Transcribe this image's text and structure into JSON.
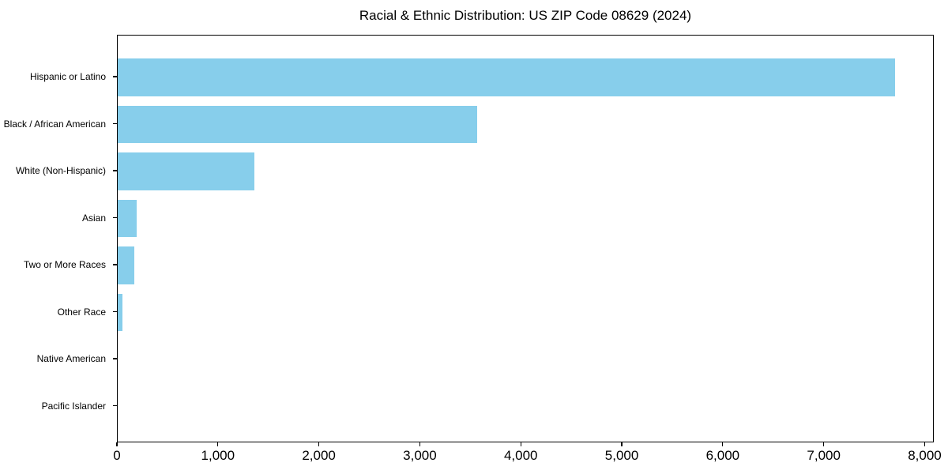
{
  "chart_data": {
    "type": "bar",
    "orientation": "horizontal",
    "title": "Racial & Ethnic Distribution: US ZIP Code 08629 (2024)",
    "categories": [
      "Hispanic or Latino",
      "Black / African American",
      "White (Non-Hispanic)",
      "Asian",
      "Two or More Races",
      "Other Race",
      "Native American",
      "Pacific Islander"
    ],
    "values": [
      7700,
      3560,
      1350,
      185,
      167,
      45,
      0,
      0
    ],
    "xlabel": "",
    "ylabel": "",
    "xlim": [
      0,
      8090
    ],
    "xticks": [
      0,
      1000,
      2000,
      3000,
      4000,
      5000,
      6000,
      7000,
      8000
    ],
    "xtick_labels": [
      "0",
      "1,000",
      "2,000",
      "3,000",
      "4,000",
      "5,000",
      "6,000",
      "7,000",
      "8,000"
    ],
    "bar_color": "#87CEEB",
    "axis_color": "#000000",
    "text_color": "#000000",
    "background_color": "#ffffff",
    "grid": false,
    "legend": "none"
  }
}
